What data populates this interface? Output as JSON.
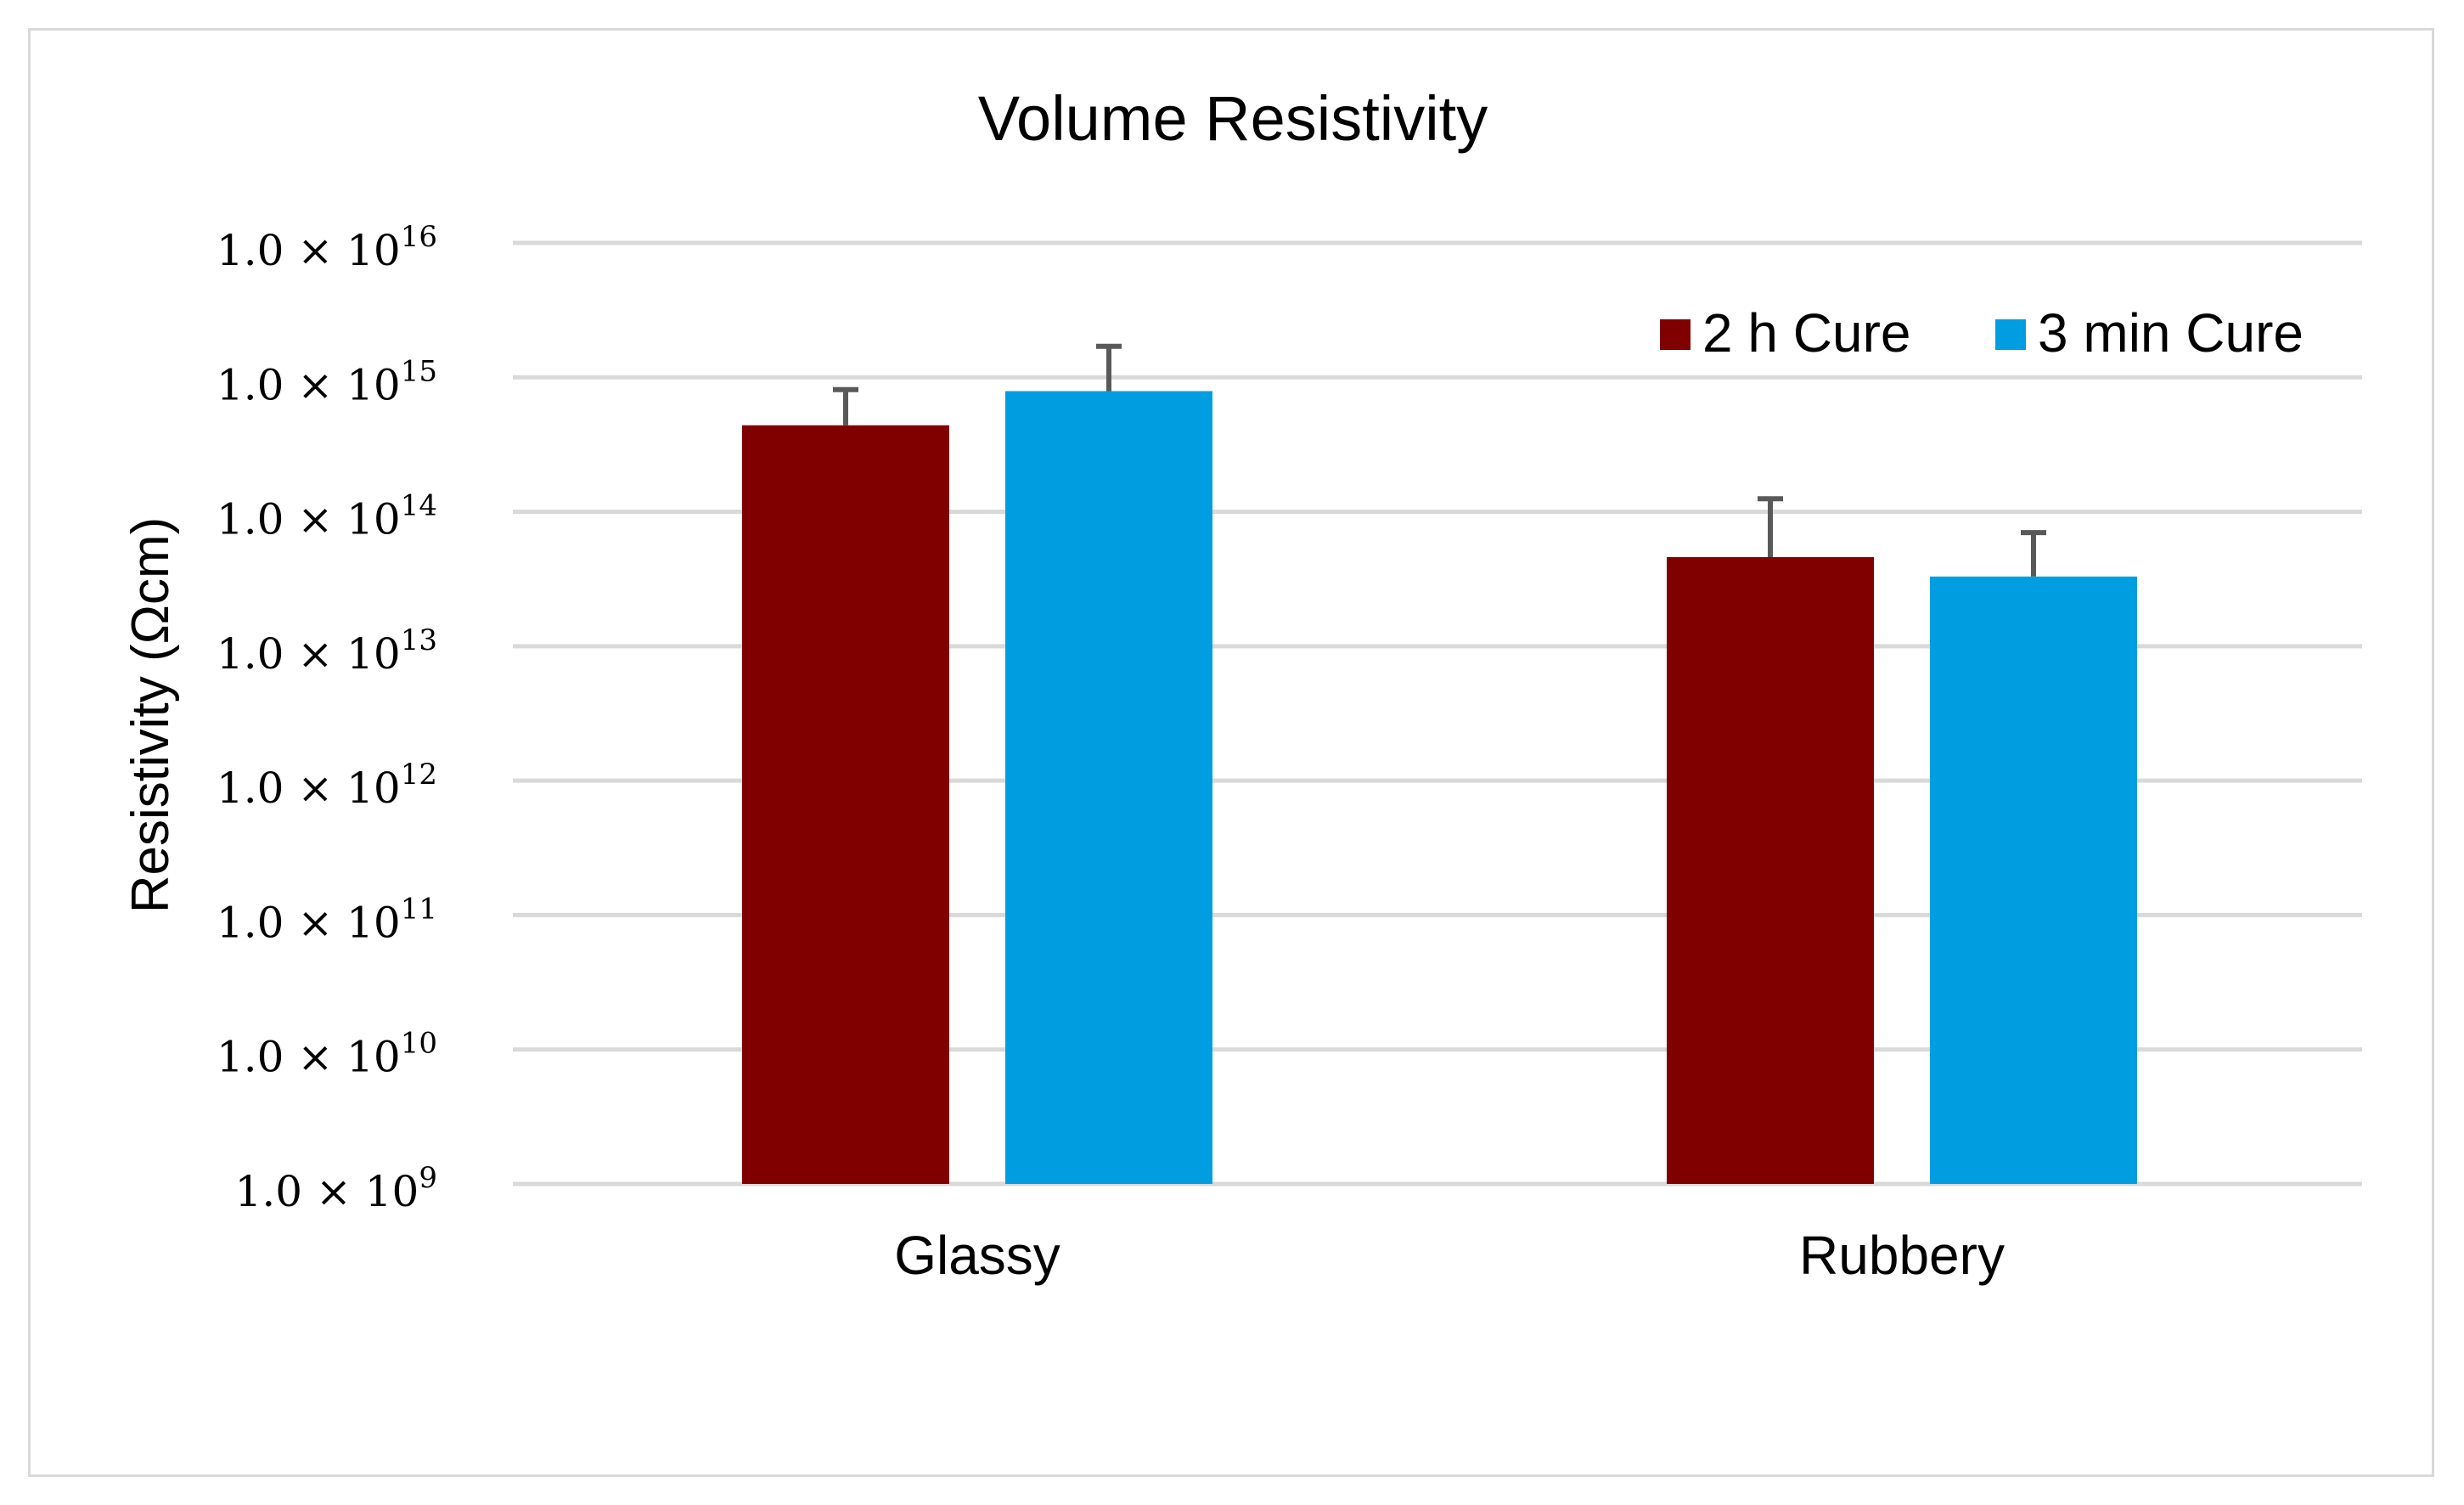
{
  "chart_data": {
    "type": "bar",
    "title": "Volume Resistivity",
    "xlabel": "",
    "ylabel": "Resistivity (Ωcm)",
    "yscale": "log",
    "ylim": [
      1000000000.0,
      1e+16
    ],
    "yticks": [
      {
        "value": 1e+16,
        "mantissa": "1.0 × 10",
        "exp": "16"
      },
      {
        "value": 1000000000000000.0,
        "mantissa": "1.0 × 10",
        "exp": "15"
      },
      {
        "value": 100000000000000.0,
        "mantissa": "1.0 × 10",
        "exp": "14"
      },
      {
        "value": 10000000000000.0,
        "mantissa": "1.0 × 10",
        "exp": "13"
      },
      {
        "value": 1000000000000.0,
        "mantissa": "1.0 × 10",
        "exp": "12"
      },
      {
        "value": 100000000000.0,
        "mantissa": "1.0 × 10",
        "exp": "11"
      },
      {
        "value": 10000000000.0,
        "mantissa": "1.0 × 10",
        "exp": "10"
      },
      {
        "value": 1000000000.0,
        "mantissa": "1.0 × 10",
        "exp": "9"
      }
    ],
    "categories": [
      "Glassy",
      "Rubbery"
    ],
    "series": [
      {
        "name": "2 h Cure",
        "color": "#800000",
        "values": [
          440000000000000.0,
          46000000000000.0
        ],
        "error_upper": [
          810000000000000.0,
          125000000000000.0
        ]
      },
      {
        "name": "3 min Cure",
        "color": "#009ee0",
        "values": [
          790000000000000.0,
          33000000000000.0
        ],
        "error_upper": [
          1700000000000000.0,
          70000000000000.0
        ]
      }
    ],
    "grid": true,
    "legend_position": "top-right",
    "error_bar_color": "#595959",
    "gridline_color": "#d9d9d9"
  }
}
